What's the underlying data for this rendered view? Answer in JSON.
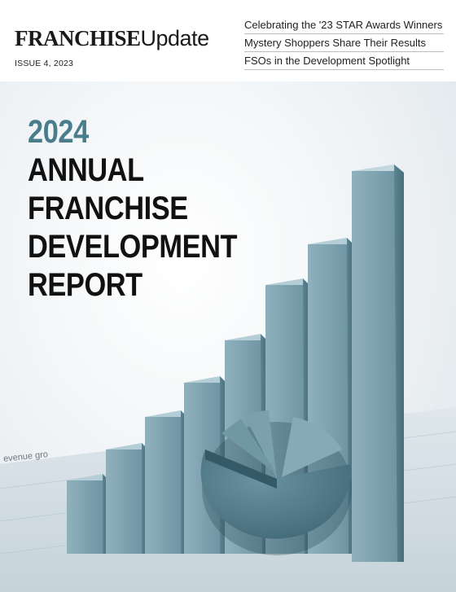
{
  "masthead": {
    "brand_bold": "FRANCHISE",
    "brand_light": "Update",
    "issue": "ISSUE 4, 2023",
    "headlines": [
      "Celebrating the '23 STAR Awards Winners",
      "Mystery Shoppers Share Their Results",
      "FSOs in the Development Spotlight"
    ]
  },
  "cover": {
    "year": "2024",
    "title_lines": [
      "ANNUAL",
      "FRANCHISE",
      "DEVELOPMENT",
      "REPORT"
    ],
    "paper_text": "evenue gro",
    "colors": {
      "accent": "#4a7d8c",
      "bar_front": "#7fa3b0",
      "bar_top": "#b4cdd6",
      "bar_side": "#5e8593",
      "pie": "#4f7886"
    }
  }
}
